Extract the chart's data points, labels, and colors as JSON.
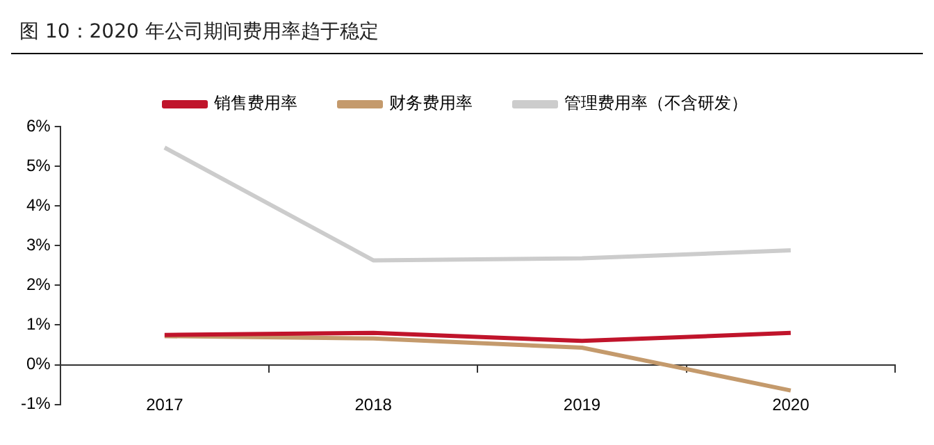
{
  "chart_data": {
    "type": "line",
    "title": "图 10：2020 年公司期间费用率趋于稳定",
    "categories": [
      "2017",
      "2018",
      "2019",
      "2020"
    ],
    "series": [
      {
        "name": "销售费用率",
        "color": "#c0142b",
        "values": [
          0.75,
          0.8,
          0.6,
          0.8
        ]
      },
      {
        "name": "财务费用率",
        "color": "#c49a6c",
        "values": [
          0.72,
          0.66,
          0.43,
          -0.65
        ]
      },
      {
        "name": "管理费用率（不含研发）",
        "color": "#cccccc",
        "values": [
          5.47,
          2.63,
          2.68,
          2.88
        ]
      }
    ],
    "ylim": [
      -1,
      6
    ],
    "yticks": [
      {
        "value": -1,
        "label": "-1%"
      },
      {
        "value": 0,
        "label": "0%"
      },
      {
        "value": 1,
        "label": "1%"
      },
      {
        "value": 2,
        "label": "2%"
      },
      {
        "value": 3,
        "label": "3%"
      },
      {
        "value": 4,
        "label": "4%"
      },
      {
        "value": 5,
        "label": "5%"
      },
      {
        "value": 6,
        "label": "6%"
      }
    ],
    "grid": false,
    "legend": "top",
    "marker": "none",
    "line_style": "solid"
  }
}
